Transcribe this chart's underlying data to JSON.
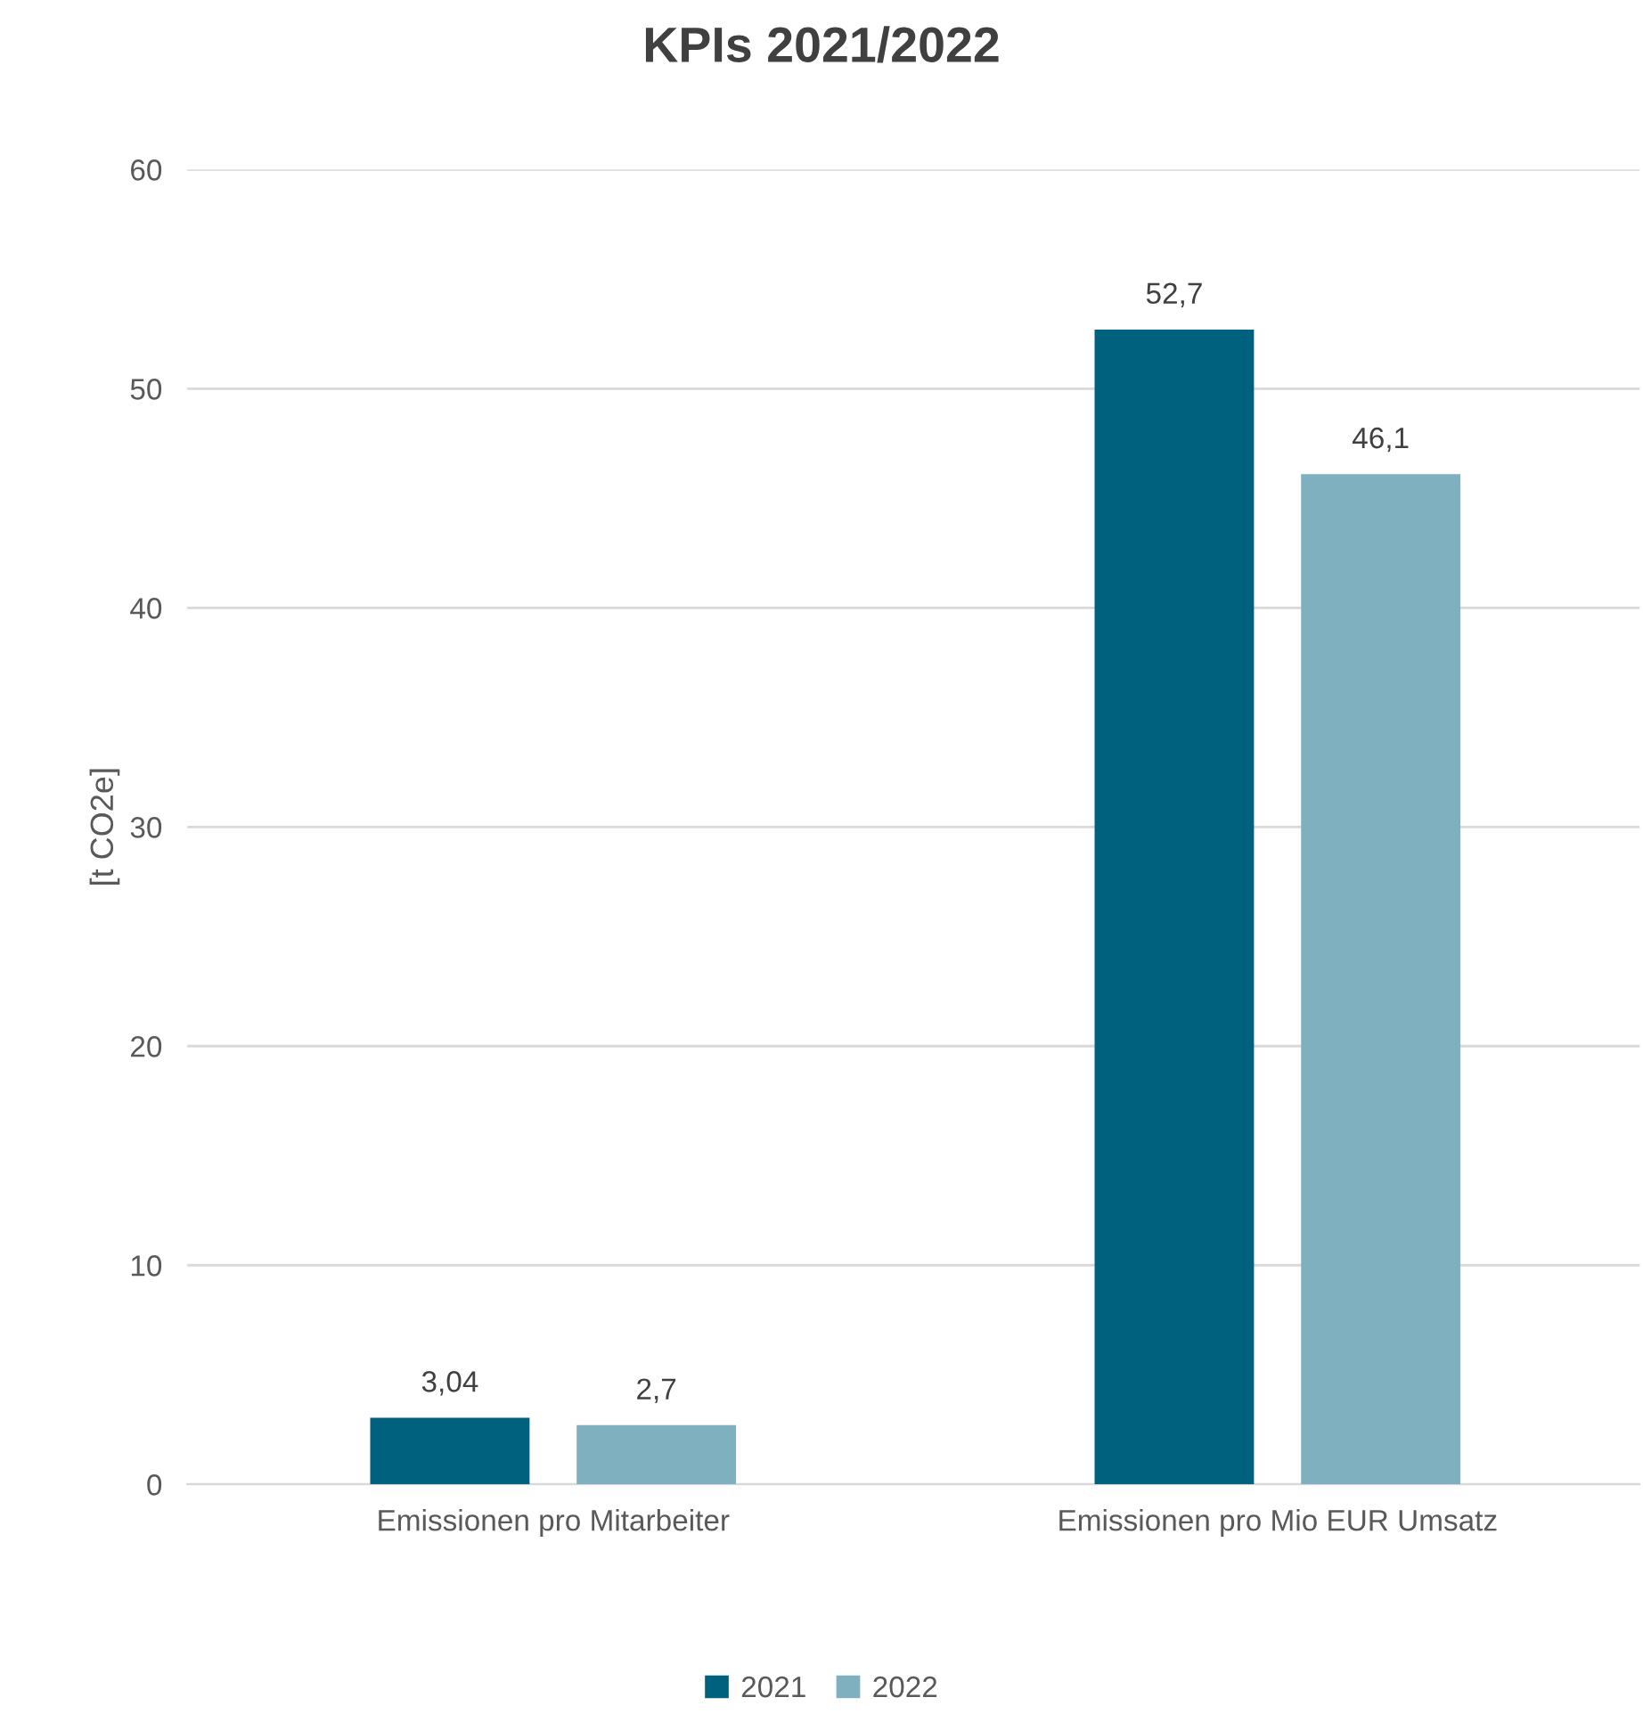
{
  "chart_data": {
    "type": "bar",
    "title": "KPIs 2021/2022",
    "ylabel": "[t CO2e]",
    "categories": [
      "Emissionen pro Mitarbeiter",
      "Emissionen pro Mio EUR Umsatz"
    ],
    "series": [
      {
        "name": "2021",
        "color": "#00617f",
        "values": [
          3.04,
          52.7
        ],
        "value_labels": [
          "3,04",
          "52,7"
        ]
      },
      {
        "name": "2022",
        "color": "#7fb0c0",
        "values": [
          2.7,
          46.1
        ],
        "value_labels": [
          "2,7",
          "46,1"
        ]
      }
    ],
    "ylim": [
      0,
      60
    ],
    "yticks": [
      0,
      10,
      20,
      30,
      40,
      50,
      60
    ],
    "grid": "y",
    "legend": "bottom"
  }
}
